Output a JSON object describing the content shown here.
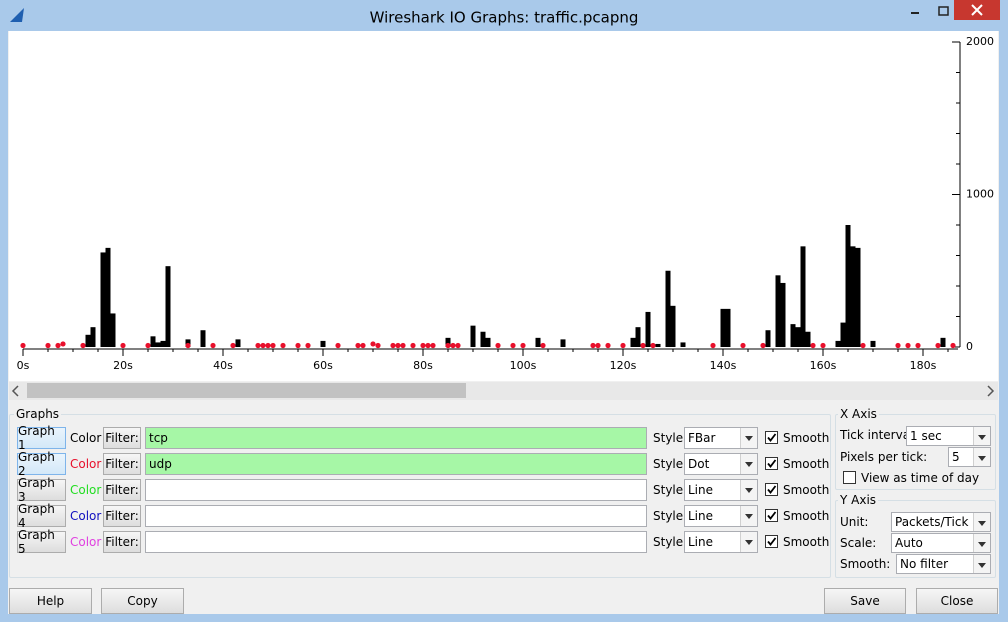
{
  "window": {
    "title": "Wireshark IO Graphs: traffic.pcapng"
  },
  "chart_data": {
    "type": "bar",
    "xlim": [
      0,
      187
    ],
    "ylim": [
      0,
      2000
    ],
    "xticks": [
      {
        "value": 0,
        "label": "0s"
      },
      {
        "value": 20,
        "label": "20s"
      },
      {
        "value": 40,
        "label": "40s"
      },
      {
        "value": 60,
        "label": "60s"
      },
      {
        "value": 80,
        "label": "80s"
      },
      {
        "value": 100,
        "label": "100s"
      },
      {
        "value": 120,
        "label": "120s"
      },
      {
        "value": 140,
        "label": "140s"
      },
      {
        "value": 160,
        "label": "160s"
      },
      {
        "value": 180,
        "label": "180s"
      }
    ],
    "xminorticks": [
      5,
      10,
      15,
      25,
      30,
      35,
      45,
      50,
      55,
      65,
      70,
      75,
      85,
      90,
      95,
      105,
      110,
      115,
      125,
      130,
      135,
      145,
      150,
      155,
      165,
      170,
      175,
      185
    ],
    "yticks": [
      0,
      1000,
      2000
    ],
    "yminorticks": [
      200,
      400,
      600,
      800,
      1200,
      1400,
      1600,
      1800
    ],
    "series": [
      {
        "type": "bar",
        "color": "#000000",
        "x": [
          13,
          14,
          16,
          17,
          18,
          26,
          27,
          28,
          29,
          33,
          36,
          43,
          60,
          85,
          90,
          92,
          93,
          103,
          108,
          122,
          123,
          125,
          127,
          129,
          130,
          132,
          140,
          141,
          149,
          151,
          152,
          154,
          155,
          156,
          157,
          163,
          164,
          165,
          166,
          167,
          170,
          184
        ],
        "values": [
          80,
          130,
          620,
          650,
          220,
          70,
          30,
          40,
          530,
          50,
          110,
          50,
          40,
          60,
          140,
          100,
          60,
          60,
          50,
          60,
          130,
          230,
          20,
          500,
          270,
          30,
          250,
          250,
          110,
          470,
          420,
          150,
          130,
          660,
          100,
          40,
          160,
          800,
          660,
          650,
          40,
          60
        ]
      },
      {
        "type": "scatter",
        "color": "#e8102c",
        "x": [
          0,
          5,
          7,
          8,
          12,
          20,
          25,
          33,
          38,
          42,
          47,
          48,
          49,
          50,
          52,
          55,
          57,
          63,
          67,
          68,
          70,
          71,
          74,
          75,
          76,
          78,
          80,
          81,
          82,
          85,
          86,
          87,
          95,
          98,
          100,
          104,
          114,
          115,
          117,
          120,
          124,
          126,
          138,
          144,
          148,
          158,
          160,
          168,
          175,
          177,
          179,
          183,
          186
        ],
        "values": [
          10,
          10,
          10,
          20,
          10,
          10,
          10,
          10,
          10,
          10,
          10,
          10,
          10,
          10,
          10,
          10,
          10,
          10,
          10,
          10,
          20,
          10,
          10,
          10,
          10,
          10,
          10,
          10,
          10,
          10,
          10,
          10,
          10,
          10,
          10,
          10,
          10,
          10,
          10,
          10,
          10,
          10,
          10,
          10,
          10,
          10,
          10,
          10,
          10,
          10,
          10,
          10,
          10
        ]
      }
    ]
  },
  "graphs": {
    "title": "Graphs",
    "rows": [
      {
        "button": "Graph 1",
        "color_label": "Color",
        "color": "#000000",
        "filter_label": "Filter:",
        "filter": "tcp",
        "style_label": "Style:",
        "style": "FBar",
        "smooth": "Smooth",
        "smooth_checked": true,
        "active": true
      },
      {
        "button": "Graph 2",
        "color_label": "Color",
        "color": "#e8102c",
        "filter_label": "Filter:",
        "filter": "udp",
        "style_label": "Style:",
        "style": "Dot",
        "smooth": "Smooth",
        "smooth_checked": true,
        "active": true
      },
      {
        "button": "Graph 3",
        "color_label": "Color",
        "color": "#22dd22",
        "filter_label": "Filter:",
        "filter": "",
        "style_label": "Style:",
        "style": "Line",
        "smooth": "Smooth",
        "smooth_checked": true,
        "active": false
      },
      {
        "button": "Graph 4",
        "color_label": "Color",
        "color": "#1010c0",
        "filter_label": "Filter:",
        "filter": "",
        "style_label": "Style:",
        "style": "Line",
        "smooth": "Smooth",
        "smooth_checked": true,
        "active": false
      },
      {
        "button": "Graph 5",
        "color_label": "Color",
        "color": "#e040e0",
        "filter_label": "Filter:",
        "filter": "",
        "style_label": "Style:",
        "style": "Line",
        "smooth": "Smooth",
        "smooth_checked": true,
        "active": false
      }
    ]
  },
  "x_axis": {
    "title": "X Axis",
    "tick_interval_label": "Tick interval:",
    "tick_interval": "1 sec",
    "pixels_per_tick_label": "Pixels per tick:",
    "pixels_per_tick": 5,
    "view_time": "View as time of day",
    "view_time_checked": false
  },
  "y_axis": {
    "title": "Y Axis",
    "unit_label": "Unit:",
    "unit": "Packets/Tick",
    "scale_label": "Scale:",
    "scale": "Auto",
    "smooth_label": "Smooth:",
    "smooth": "No filter"
  },
  "buttons": {
    "help": "Help",
    "copy": "Copy",
    "save": "Save",
    "close": "Close"
  }
}
